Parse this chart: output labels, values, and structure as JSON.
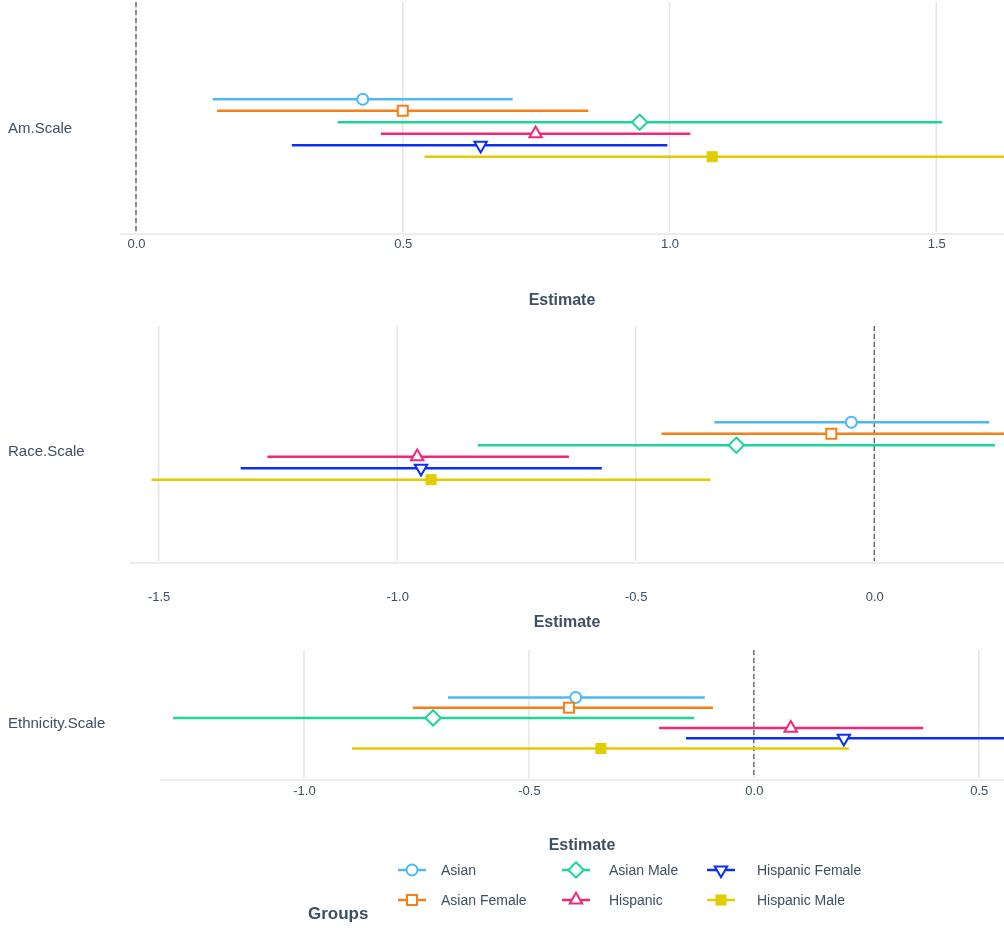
{
  "chart_data": [
    {
      "type": "scatter",
      "orientation": "horizontal",
      "categories": [
        "Am.Scale"
      ],
      "xlabel": "Estimate",
      "xlim": [
        -0.03,
        1.627
      ],
      "xticks": [
        {
          "value": 0,
          "label": "0.0"
        },
        0.5,
        {
          "value": 1,
          "label": "1.0"
        },
        1.5
      ],
      "grid": "x",
      "legend": false,
      "ref_lines": [
        {
          "axis": "x",
          "value": 0,
          "line_style": "dashed",
          "color": "#333333"
        }
      ],
      "series": [
        {
          "color": "#4cb8f5",
          "marker": "circle",
          "values": [
            0.425
          ],
          "errors": [
            [
              0.144,
              0.706
            ]
          ]
        },
        {
          "color": "#f77f17",
          "marker": "square",
          "values": [
            0.5
          ],
          "errors": [
            [
              0.152,
              0.848
            ]
          ]
        },
        {
          "color": "#1dd596",
          "marker": "diamond",
          "values": [
            0.944
          ],
          "errors": [
            [
              0.378,
              1.511
            ]
          ]
        },
        {
          "color": "#f0287a",
          "marker": "triangle",
          "values": [
            0.749
          ],
          "errors": [
            [
              0.459,
              1.039
            ]
          ]
        },
        {
          "color": "#0a2ff5",
          "marker": "triangle-down",
          "values": [
            0.646
          ],
          "errors": [
            [
              0.292,
              0.996
            ]
          ]
        },
        {
          "color": "#e0cc00",
          "marker": "square",
          "values": [
            1.08
          ],
          "errors": [
            [
              0.541,
              1.627
            ]
          ]
        }
      ]
    },
    {
      "type": "scatter",
      "orientation": "horizontal",
      "categories": [
        "Race.Scale"
      ],
      "xlabel": "Estimate",
      "xlim": [
        -1.56,
        0.272
      ],
      "xticks": [
        -1.5,
        {
          "value": -1,
          "label": "-1.0"
        },
        -0.5,
        {
          "value": 0,
          "label": "0.0"
        }
      ],
      "grid": "x",
      "legend": false,
      "ref_lines": [
        {
          "axis": "x",
          "value": 0,
          "line_style": "dashed",
          "color": "#333333"
        }
      ],
      "series": [
        {
          "color": "#4cb8f5",
          "marker": "circle",
          "values": [
            -0.048
          ],
          "errors": [
            [
              -0.335,
              0.241
            ]
          ]
        },
        {
          "color": "#f77f17",
          "marker": "square",
          "values": [
            -0.09
          ],
          "errors": [
            [
              -0.446,
              0.272
            ]
          ]
        },
        {
          "color": "#1dd596",
          "marker": "diamond",
          "values": [
            -0.289
          ],
          "errors": [
            [
              -0.831,
              0.253
            ]
          ]
        },
        {
          "color": "#f0287a",
          "marker": "triangle",
          "values": [
            -0.958
          ],
          "errors": [
            [
              -1.272,
              -0.64
            ]
          ]
        },
        {
          "color": "#0a2ff5",
          "marker": "triangle-down",
          "values": [
            -0.95
          ],
          "errors": [
            [
              -1.328,
              -0.571
            ]
          ]
        },
        {
          "color": "#e0cc00",
          "marker": "square",
          "values": [
            -0.929
          ],
          "errors": [
            [
              -1.515,
              -0.343
            ]
          ]
        }
      ]
    },
    {
      "type": "scatter",
      "orientation": "horizontal",
      "categories": [
        "Ethnicity.Scale"
      ],
      "xlabel": "Estimate",
      "xlim": [
        -1.32,
        0.556
      ],
      "xticks": [
        {
          "value": -1,
          "label": "-1.0"
        },
        -0.5,
        {
          "value": 0,
          "label": "0.0"
        },
        0.5
      ],
      "grid": "x",
      "legend": "bottom",
      "legend_title": "Groups",
      "ref_lines": [
        {
          "axis": "x",
          "value": 0,
          "line_style": "dashed",
          "color": "#333333"
        }
      ],
      "series": [
        {
          "name": "Asian",
          "color": "#4cb8f5",
          "marker": "circle",
          "values": [
            -0.396
          ],
          "errors": [
            [
              -0.68,
              -0.109
            ]
          ]
        },
        {
          "name": "Asian Female",
          "color": "#f77f17",
          "marker": "square",
          "values": [
            -0.411
          ],
          "errors": [
            [
              -0.758,
              -0.091
            ]
          ]
        },
        {
          "name": "Asian Male",
          "color": "#1dd596",
          "marker": "diamond",
          "values": [
            -0.713
          ],
          "errors": [
            [
              -1.291,
              -0.133
            ]
          ]
        },
        {
          "name": "Hispanic",
          "color": "#f0287a",
          "marker": "triangle",
          "values": [
            0.082
          ],
          "errors": [
            [
              -0.211,
              0.376
            ]
          ]
        },
        {
          "name": "Hispanic Female",
          "color": "#0a2ff5",
          "marker": "triangle-down",
          "values": [
            0.2
          ],
          "errors": [
            [
              -0.151,
              0.556
            ]
          ]
        },
        {
          "name": "Hispanic Male",
          "color": "#e0cc00",
          "marker": "square",
          "values": [
            -0.34
          ],
          "errors": [
            [
              -0.893,
              0.211
            ]
          ]
        }
      ]
    }
  ]
}
